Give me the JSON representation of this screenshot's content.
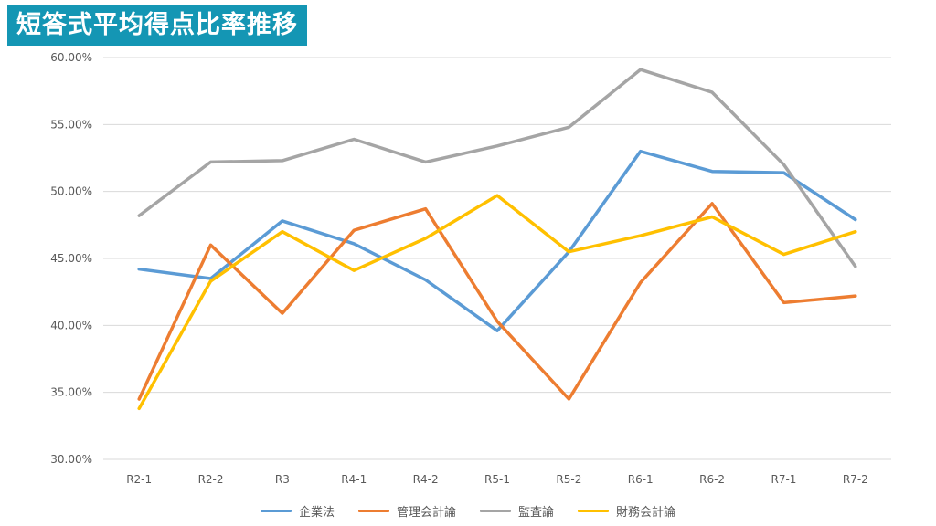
{
  "header": {
    "title": "短答式平均得点比率推移"
  },
  "colors": {
    "title_bg": "#1496b4",
    "grid": "#d9d9d9",
    "tick_text": "#595959"
  },
  "chart_data": {
    "type": "line",
    "title": "短答式平均得点比率推移",
    "xlabel": "",
    "ylabel": "",
    "ylim": [
      0.3,
      0.6
    ],
    "yticks": [
      "30.00%",
      "35.00%",
      "40.00%",
      "45.00%",
      "50.00%",
      "55.00%",
      "60.00%"
    ],
    "categories": [
      "R2-1",
      "R2-2",
      "R3",
      "R4-1",
      "R4-2",
      "R5-1",
      "R5-2",
      "R6-1",
      "R6-2",
      "R7-1",
      "R7-2"
    ],
    "grid": true,
    "legend": "bottom",
    "series": [
      {
        "name": "企業法",
        "color": "#5b9bd5",
        "values": [
          0.442,
          0.435,
          0.478,
          0.461,
          0.434,
          0.396,
          0.455,
          0.53,
          0.515,
          0.514,
          0.479
        ]
      },
      {
        "name": "管理会計論",
        "color": "#ed7d31",
        "values": [
          0.345,
          0.46,
          0.409,
          0.471,
          0.487,
          0.403,
          0.345,
          0.432,
          0.491,
          0.417,
          0.422
        ]
      },
      {
        "name": "監査論",
        "color": "#a5a5a5",
        "values": [
          0.482,
          0.522,
          0.523,
          0.539,
          0.522,
          0.534,
          0.548,
          0.591,
          0.574,
          0.52,
          0.444
        ]
      },
      {
        "name": "財務会計論",
        "color": "#ffc000",
        "values": [
          0.338,
          0.433,
          0.47,
          0.441,
          0.465,
          0.497,
          0.455,
          0.467,
          0.481,
          0.453,
          0.47
        ]
      }
    ]
  }
}
